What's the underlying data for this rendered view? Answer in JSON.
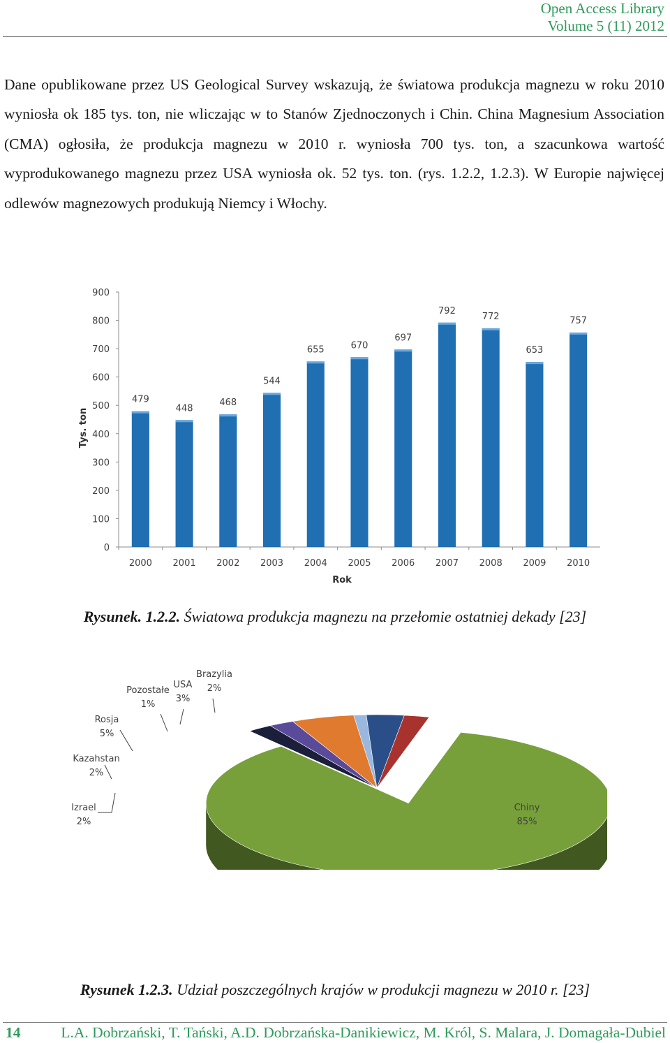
{
  "header": {
    "journal": "Open Access Library",
    "volume": "Volume 5 (11) 2012"
  },
  "body_text": "Dane opublikowane przez US Geological Survey wskazują, że światowa produkcja magnezu w roku 2010 wyniosła ok 185 tys. ton, nie wliczając w to Stanów Zjednoczonych i Chin. China Magnesium Association (CMA) ogłosiła, że produkcja magnezu w 2010 r. wyniosła 700 tys. ton, a szacunkowa wartość wyprodukowanego magnezu przez USA wyniosła ok. 52 tys. ton. (rys. 1.2.2, 1.2.3). W Europie najwięcej odlewów magnezowych produkują Niemcy i Włochy.",
  "figure1": {
    "caption_label": "Rysunek. 1.2.2.",
    "caption_text": "Światowa produkcja magnezu na przełomie ostatniej dekady [23]"
  },
  "figure2": {
    "caption_label": "Rysunek 1.2.3.",
    "caption_text": "Udział poszczególnych krajów w produkcji magnezu w 2010 r. [23]"
  },
  "footer": {
    "page_number": "14",
    "authors": "L.A. Dobrzański, T. Tański, A.D. Dobrzańska-Danikiewicz, M. Król, S. Malara, J. Domagała-Dubiel"
  },
  "chart_data": [
    {
      "type": "bar",
      "categories": [
        "2000",
        "2001",
        "2002",
        "2003",
        "2004",
        "2005",
        "2006",
        "2007",
        "2008",
        "2009",
        "2010"
      ],
      "values": [
        479,
        448,
        468,
        544,
        655,
        670,
        697,
        792,
        772,
        653,
        757
      ],
      "data_labels": [
        "479",
        "448",
        "468",
        "544",
        "655",
        "670",
        "697",
        "792",
        "772",
        "653",
        "757"
      ],
      "xlabel": "Rok",
      "ylabel": "Tys. ton",
      "ylim": [
        0,
        900
      ],
      "yticks": [
        "0",
        "100",
        "200",
        "300",
        "400",
        "500",
        "600",
        "700",
        "800",
        "900"
      ],
      "grid": false,
      "bar_color": "#1f6fb2"
    },
    {
      "type": "pie",
      "style": "3d",
      "slices": [
        {
          "label": "Chiny",
          "value": 85,
          "value_label": "85%",
          "color": "#77a03a"
        },
        {
          "label": "Izrael",
          "value": 2,
          "value_label": "2%",
          "color": "#1c1f3a"
        },
        {
          "label": "Kazahstan",
          "value": 2,
          "value_label": "2%",
          "color": "#5a4a9a"
        },
        {
          "label": "Rosja",
          "value": 5,
          "value_label": "5%",
          "color": "#e07a2e"
        },
        {
          "label": "Pozostałe",
          "value": 1,
          "value_label": "1%",
          "color": "#9ab8de"
        },
        {
          "label": "USA",
          "value": 3,
          "value_label": "3%",
          "color": "#2a4f88"
        },
        {
          "label": "Brazylia",
          "value": 2,
          "value_label": "2%",
          "color": "#a8332e"
        }
      ]
    }
  ]
}
